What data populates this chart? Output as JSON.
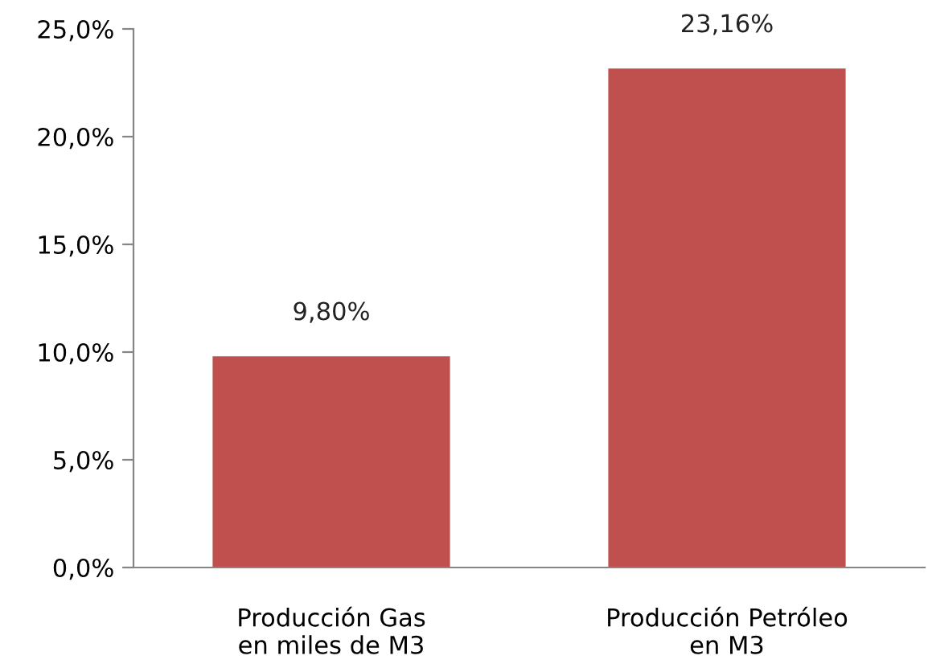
{
  "chart_data": {
    "type": "bar",
    "categories": [
      "Producción Gas\nen miles de M3",
      "Producción Petróleo\nen M3"
    ],
    "values": [
      9.8,
      23.16
    ],
    "color": "#c0504d",
    "value_labels": [
      "9,80%",
      "23,16%"
    ],
    "ylim": [
      0,
      25
    ],
    "yticks": [
      {
        "value": 0,
        "label": "0,0%"
      },
      {
        "value": 5,
        "label": "5,0%"
      },
      {
        "value": 10,
        "label": "10,0%"
      },
      {
        "value": 15,
        "label": "15,0%"
      },
      {
        "value": 20,
        "label": "20,0%"
      },
      {
        "value": 25,
        "label": "25,0%"
      }
    ],
    "grid": false,
    "legend": false
  }
}
